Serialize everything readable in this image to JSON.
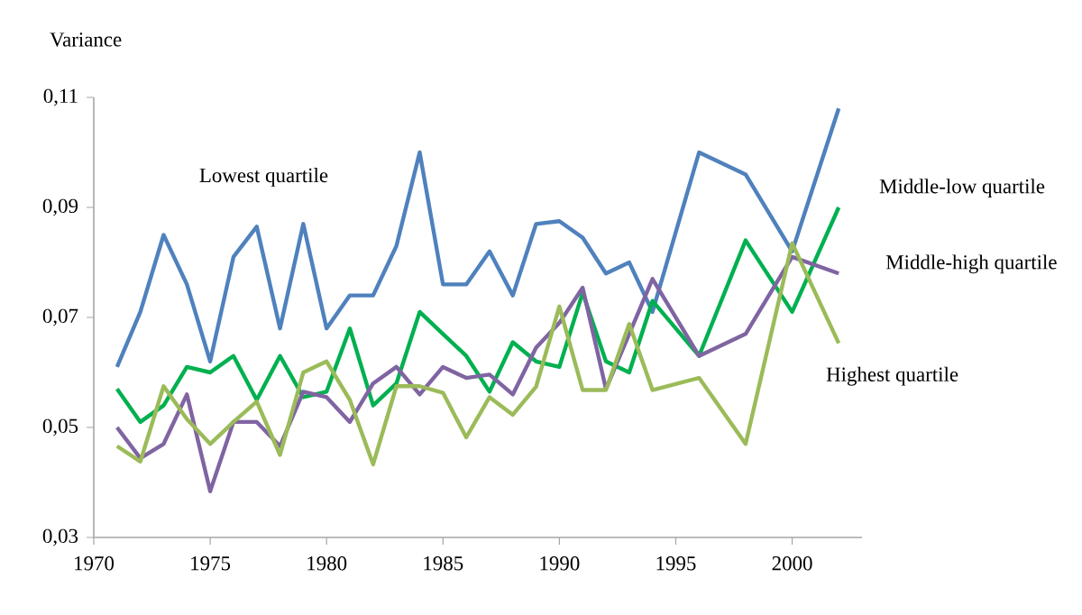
{
  "chart_data": {
    "type": "line",
    "ylabel": "Variance",
    "x": [
      1971,
      1972,
      1973,
      1974,
      1975,
      1976,
      1977,
      1978,
      1979,
      1980,
      1981,
      1982,
      1983,
      1984,
      1985,
      1986,
      1987,
      1988,
      1989,
      1990,
      1991,
      1992,
      1993,
      1994,
      1996,
      1998,
      2000,
      2002
    ],
    "series": [
      {
        "name": "Lowest quartile",
        "color": "#4f81bd",
        "values": [
          0.061,
          0.071,
          0.085,
          0.076,
          0.062,
          0.081,
          0.0865,
          0.068,
          0.087,
          0.068,
          0.074,
          0.074,
          0.083,
          0.1,
          0.076,
          0.076,
          0.082,
          0.074,
          0.087,
          0.0875,
          0.0845,
          0.078,
          0.08,
          0.071,
          0.1,
          0.096,
          0.082,
          0.108
        ]
      },
      {
        "name": "Middle-low quartile",
        "color": "#00b050",
        "values": [
          0.057,
          0.051,
          0.054,
          0.061,
          0.06,
          0.063,
          0.055,
          0.063,
          0.0555,
          0.0565,
          0.068,
          0.054,
          0.058,
          0.071,
          0.067,
          0.063,
          0.0565,
          0.0655,
          0.062,
          0.061,
          0.0745,
          0.062,
          0.06,
          0.073,
          0.063,
          0.084,
          0.071,
          0.09
        ]
      },
      {
        "name": "Middle-high quartile",
        "color": "#8064a2",
        "values": [
          0.05,
          0.0444,
          0.047,
          0.056,
          0.0384,
          0.051,
          0.051,
          0.0466,
          0.0565,
          0.0555,
          0.051,
          0.058,
          0.061,
          0.056,
          0.061,
          0.059,
          0.0596,
          0.056,
          0.0645,
          0.069,
          0.0754,
          0.057,
          0.067,
          0.077,
          0.063,
          0.067,
          0.081,
          0.078
        ]
      },
      {
        "name": "Highest quartile",
        "color": "#9bbb59",
        "values": [
          0.0466,
          0.0438,
          0.0575,
          0.0515,
          0.047,
          0.051,
          0.0547,
          0.045,
          0.06,
          0.062,
          0.055,
          0.0433,
          0.0575,
          0.0575,
          0.0563,
          0.0482,
          0.0555,
          0.0523,
          0.0574,
          0.072,
          0.0568,
          0.0568,
          0.0688,
          0.0568,
          0.059,
          0.047,
          0.0835,
          0.0653
        ]
      }
    ],
    "xlim": [
      1970,
      2003
    ],
    "ylim": [
      0.03,
      0.11
    ],
    "xticks": [
      1970,
      1975,
      1980,
      1985,
      1990,
      1995,
      2000
    ],
    "yticks": [
      {
        "value": 0.03,
        "label": "0,03"
      },
      {
        "value": 0.05,
        "label": "0,05"
      },
      {
        "value": 0.07,
        "label": "0,07"
      },
      {
        "value": 0.09,
        "label": "0,09"
      },
      {
        "value": 0.11,
        "label": "0,11"
      }
    ],
    "grid": false,
    "legend": false,
    "marker": "none",
    "line_style": "solid"
  }
}
